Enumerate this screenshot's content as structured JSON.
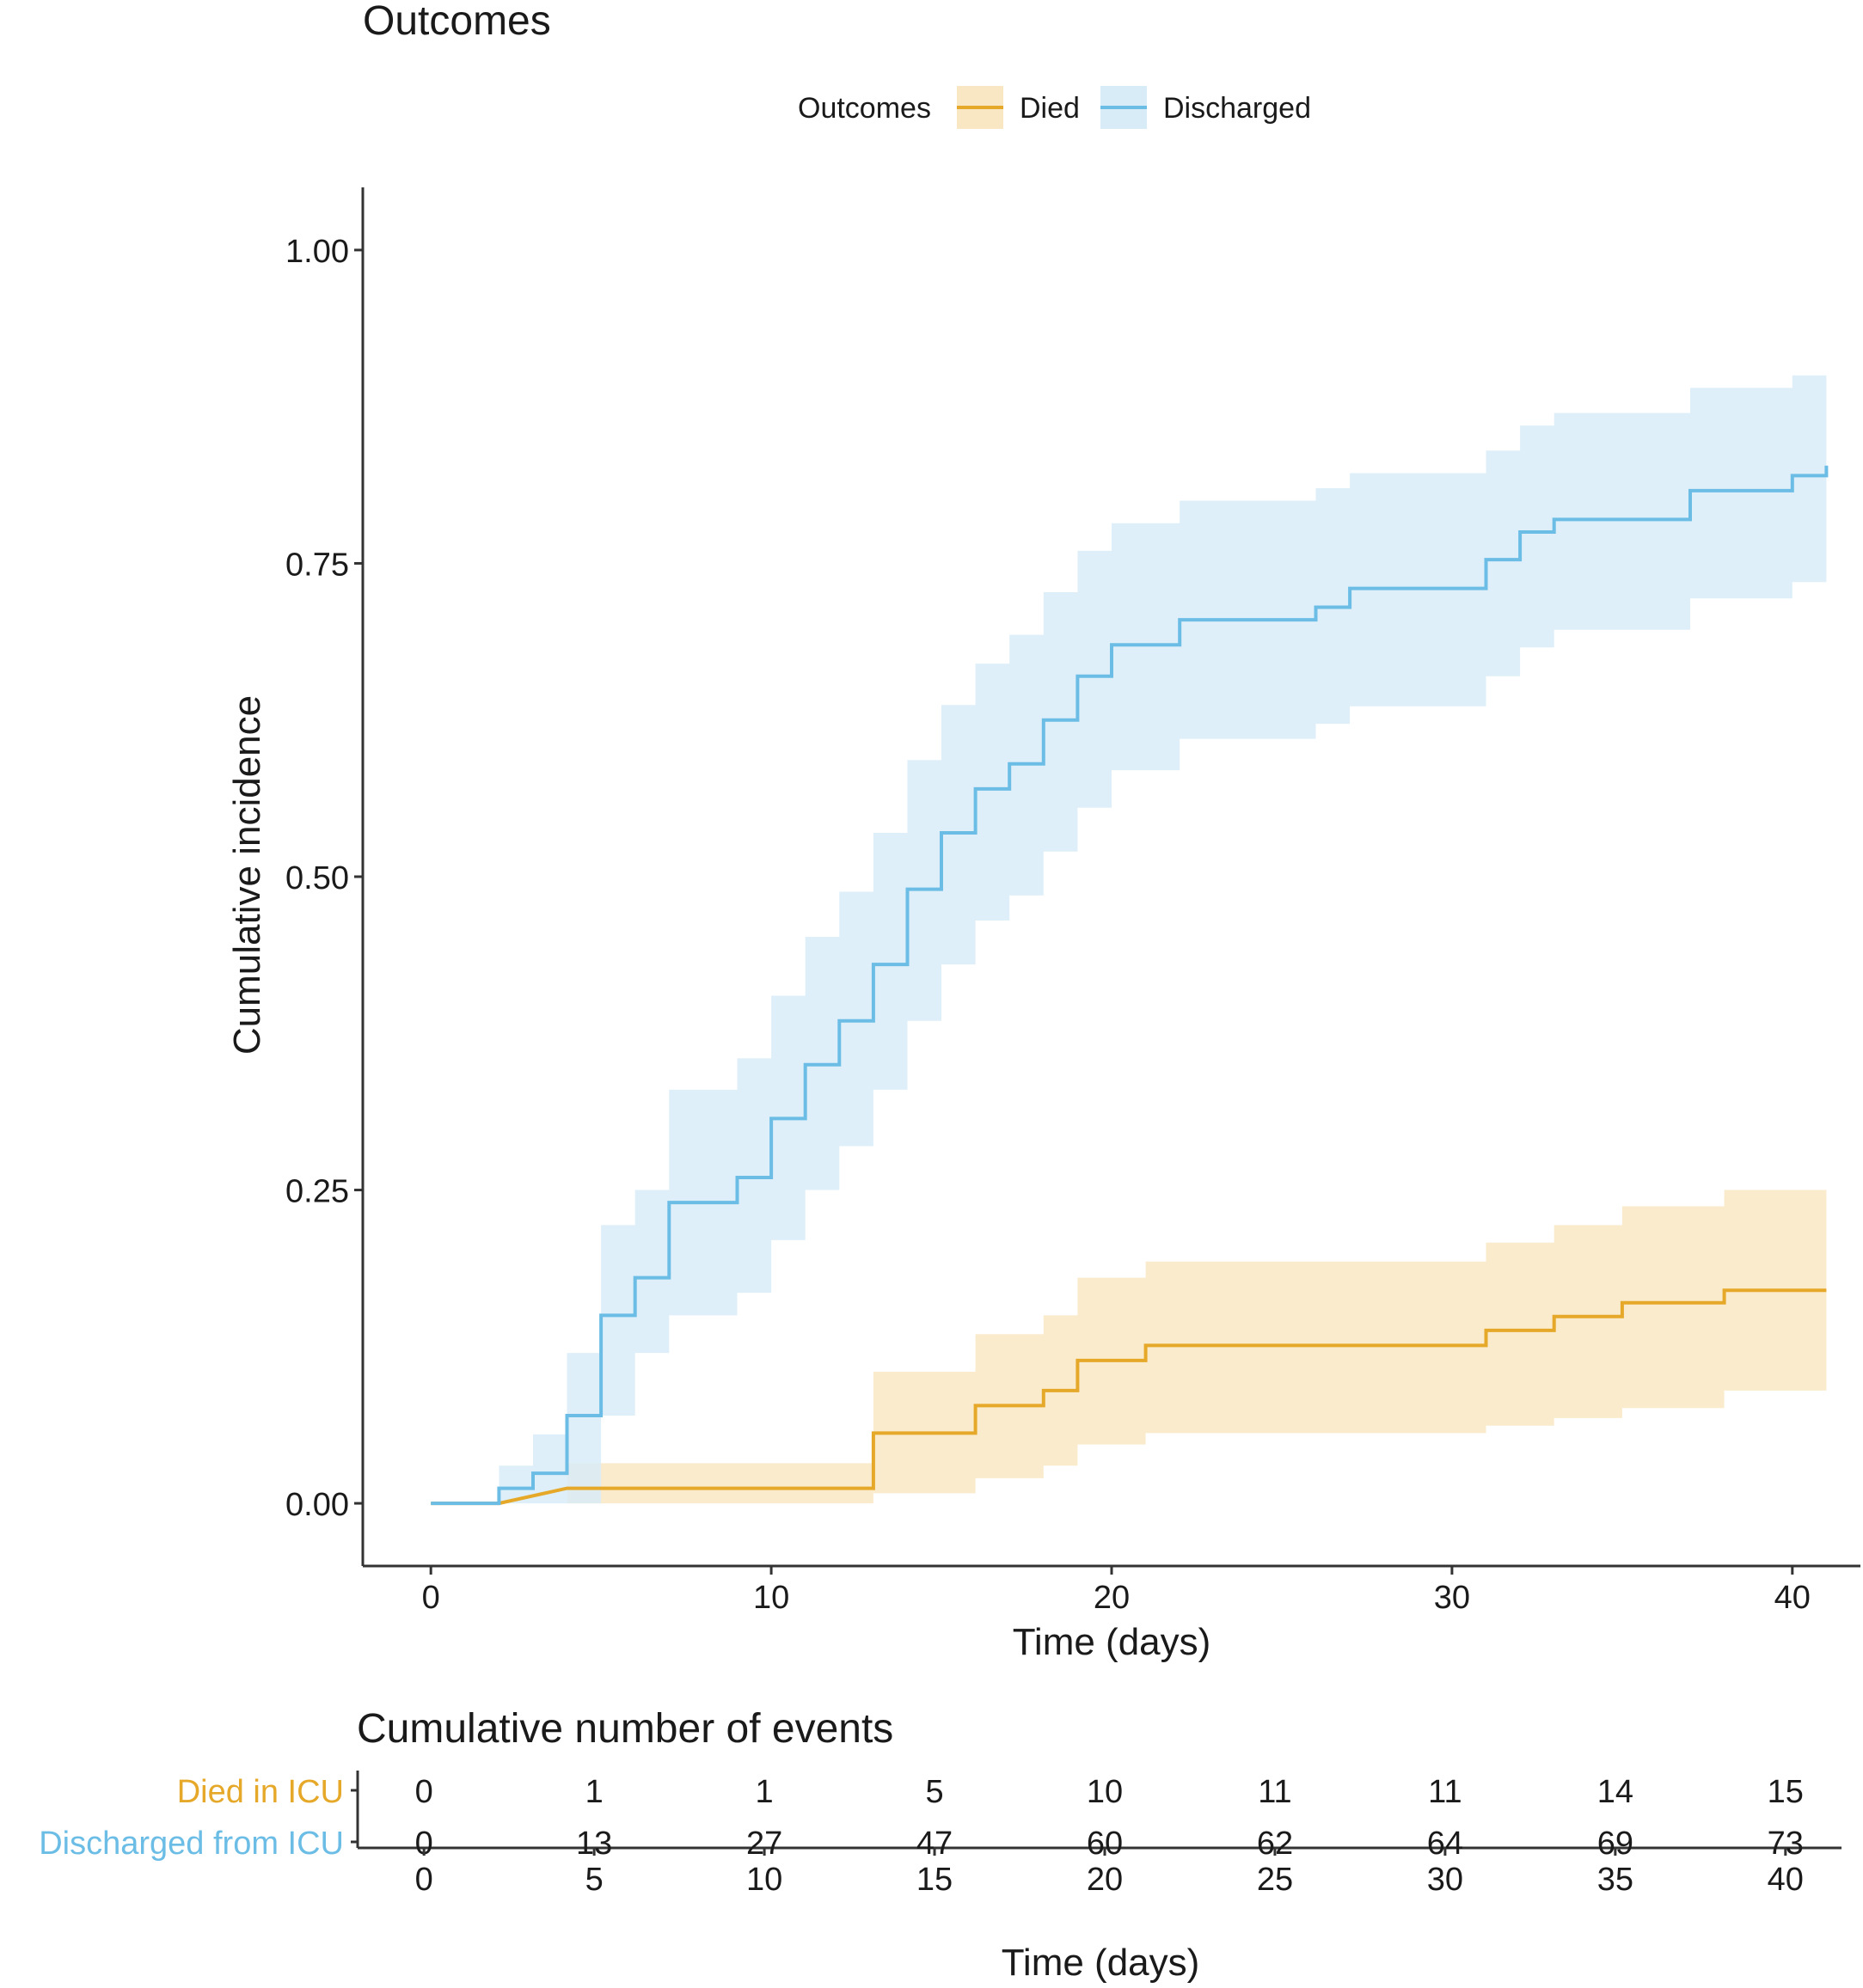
{
  "chart_data": [
    {
      "type": "line",
      "step": true,
      "title": "Outcomes",
      "xlabel": "Time (days)",
      "ylabel": "Cumulative incidence",
      "xlim": [
        -2,
        42
      ],
      "ylim": [
        -0.05,
        1.05
      ],
      "x_ticks": [
        0,
        10,
        20,
        30,
        40
      ],
      "y_ticks": [
        0,
        0.25,
        0.5,
        0.75,
        1.0
      ],
      "y_tick_labels": [
        "0.00",
        "0.25",
        "0.50",
        "0.75",
        "1.00"
      ],
      "grid": false,
      "legend": {
        "title": "Outcomes",
        "position": "top",
        "entries": [
          "Died",
          "Discharged"
        ]
      },
      "series": [
        {
          "name": "Died",
          "color": "#e6a829",
          "fill": "#f9e7c4",
          "points": [
            [
              0,
              0
            ],
            [
              2,
              0
            ],
            [
              4,
              0.012
            ],
            [
              13,
              0.012
            ],
            [
              13,
              0.056
            ],
            [
              16,
              0.056
            ],
            [
              16,
              0.078
            ],
            [
              18,
              0.078
            ],
            [
              18,
              0.09
            ],
            [
              19,
              0.09
            ],
            [
              19,
              0.114
            ],
            [
              21,
              0.114
            ],
            [
              21,
              0.126
            ],
            [
              31,
              0.126
            ],
            [
              31,
              0.138
            ],
            [
              33,
              0.138
            ],
            [
              33,
              0.149
            ],
            [
              35,
              0.149
            ],
            [
              35,
              0.16
            ],
            [
              38,
              0.16
            ],
            [
              38,
              0.17
            ],
            [
              41,
              0.17
            ]
          ],
          "lower": [
            [
              0,
              0
            ],
            [
              4,
              0
            ],
            [
              13,
              0
            ],
            [
              13,
              0.008
            ],
            [
              16,
              0.008
            ],
            [
              16,
              0.02
            ],
            [
              18,
              0.02
            ],
            [
              18,
              0.03
            ],
            [
              19,
              0.03
            ],
            [
              19,
              0.047
            ],
            [
              21,
              0.047
            ],
            [
              21,
              0.056
            ],
            [
              31,
              0.056
            ],
            [
              31,
              0.062
            ],
            [
              33,
              0.062
            ],
            [
              33,
              0.068
            ],
            [
              35,
              0.068
            ],
            [
              35,
              0.076
            ],
            [
              38,
              0.076
            ],
            [
              38,
              0.09
            ],
            [
              41,
              0.09
            ]
          ],
          "upper": [
            [
              0,
              0
            ],
            [
              4,
              0
            ],
            [
              4,
              0.032
            ],
            [
              13,
              0.032
            ],
            [
              13,
              0.105
            ],
            [
              16,
              0.105
            ],
            [
              16,
              0.135
            ],
            [
              18,
              0.135
            ],
            [
              18,
              0.15
            ],
            [
              19,
              0.15
            ],
            [
              19,
              0.18
            ],
            [
              21,
              0.18
            ],
            [
              21,
              0.193
            ],
            [
              31,
              0.193
            ],
            [
              31,
              0.208
            ],
            [
              33,
              0.208
            ],
            [
              33,
              0.222
            ],
            [
              35,
              0.222
            ],
            [
              35,
              0.237
            ],
            [
              38,
              0.237
            ],
            [
              38,
              0.25
            ],
            [
              41,
              0.25
            ]
          ]
        },
        {
          "name": "Discharged",
          "color": "#6bbde6",
          "fill": "#d8ecf8",
          "points": [
            [
              0,
              0
            ],
            [
              2,
              0
            ],
            [
              2,
              0.012
            ],
            [
              3,
              0.012
            ],
            [
              3,
              0.024
            ],
            [
              4,
              0.024
            ],
            [
              4,
              0.07
            ],
            [
              5,
              0.07
            ],
            [
              5,
              0.15
            ],
            [
              6,
              0.15
            ],
            [
              6,
              0.18
            ],
            [
              7,
              0.18
            ],
            [
              7,
              0.24
            ],
            [
              9,
              0.24
            ],
            [
              9,
              0.26
            ],
            [
              10,
              0.26
            ],
            [
              10,
              0.307
            ],
            [
              11,
              0.307
            ],
            [
              11,
              0.35
            ],
            [
              12,
              0.35
            ],
            [
              12,
              0.385
            ],
            [
              13,
              0.385
            ],
            [
              13,
              0.43
            ],
            [
              14,
              0.43
            ],
            [
              14,
              0.49
            ],
            [
              15,
              0.49
            ],
            [
              15,
              0.535
            ],
            [
              16,
              0.535
            ],
            [
              16,
              0.57
            ],
            [
              17,
              0.57
            ],
            [
              17,
              0.59
            ],
            [
              18,
              0.59
            ],
            [
              18,
              0.625
            ],
            [
              19,
              0.625
            ],
            [
              19,
              0.66
            ],
            [
              20,
              0.66
            ],
            [
              20,
              0.685
            ],
            [
              22,
              0.685
            ],
            [
              22,
              0.705
            ],
            [
              26,
              0.705
            ],
            [
              26,
              0.715
            ],
            [
              27,
              0.715
            ],
            [
              27,
              0.73
            ],
            [
              31,
              0.73
            ],
            [
              31,
              0.753
            ],
            [
              32,
              0.753
            ],
            [
              32,
              0.775
            ],
            [
              33,
              0.775
            ],
            [
              33,
              0.785
            ],
            [
              37,
              0.785
            ],
            [
              37,
              0.808
            ],
            [
              40,
              0.808
            ],
            [
              40,
              0.82
            ],
            [
              41,
              0.82
            ],
            [
              41,
              0.828
            ]
          ],
          "lower": [
            [
              0,
              0
            ],
            [
              5,
              0
            ],
            [
              5,
              0.07
            ],
            [
              6,
              0.07
            ],
            [
              6,
              0.12
            ],
            [
              7,
              0.12
            ],
            [
              7,
              0.15
            ],
            [
              9,
              0.15
            ],
            [
              9,
              0.168
            ],
            [
              10,
              0.168
            ],
            [
              10,
              0.21
            ],
            [
              11,
              0.21
            ],
            [
              11,
              0.25
            ],
            [
              12,
              0.25
            ],
            [
              12,
              0.285
            ],
            [
              13,
              0.285
            ],
            [
              13,
              0.33
            ],
            [
              14,
              0.33
            ],
            [
              14,
              0.385
            ],
            [
              15,
              0.385
            ],
            [
              15,
              0.43
            ],
            [
              16,
              0.43
            ],
            [
              16,
              0.465
            ],
            [
              17,
              0.465
            ],
            [
              17,
              0.485
            ],
            [
              18,
              0.485
            ],
            [
              18,
              0.52
            ],
            [
              19,
              0.52
            ],
            [
              19,
              0.555
            ],
            [
              20,
              0.555
            ],
            [
              20,
              0.585
            ],
            [
              22,
              0.585
            ],
            [
              22,
              0.61
            ],
            [
              26,
              0.61
            ],
            [
              26,
              0.622
            ],
            [
              27,
              0.622
            ],
            [
              27,
              0.636
            ],
            [
              31,
              0.636
            ],
            [
              31,
              0.66
            ],
            [
              32,
              0.66
            ],
            [
              32,
              0.683
            ],
            [
              33,
              0.683
            ],
            [
              33,
              0.697
            ],
            [
              37,
              0.697
            ],
            [
              37,
              0.722
            ],
            [
              40,
              0.722
            ],
            [
              40,
              0.735
            ],
            [
              41,
              0.735
            ]
          ],
          "upper": [
            [
              0,
              0
            ],
            [
              2,
              0
            ],
            [
              2,
              0.03
            ],
            [
              3,
              0.03
            ],
            [
              3,
              0.055
            ],
            [
              4,
              0.055
            ],
            [
              4,
              0.12
            ],
            [
              5,
              0.12
            ],
            [
              5,
              0.222
            ],
            [
              6,
              0.222
            ],
            [
              6,
              0.25
            ],
            [
              7,
              0.25
            ],
            [
              7,
              0.33
            ],
            [
              9,
              0.33
            ],
            [
              9,
              0.355
            ],
            [
              10,
              0.355
            ],
            [
              10,
              0.405
            ],
            [
              11,
              0.405
            ],
            [
              11,
              0.452
            ],
            [
              12,
              0.452
            ],
            [
              12,
              0.488
            ],
            [
              13,
              0.488
            ],
            [
              13,
              0.535
            ],
            [
              14,
              0.535
            ],
            [
              14,
              0.593
            ],
            [
              15,
              0.593
            ],
            [
              15,
              0.637
            ],
            [
              16,
              0.637
            ],
            [
              16,
              0.67
            ],
            [
              17,
              0.67
            ],
            [
              17,
              0.693
            ],
            [
              18,
              0.693
            ],
            [
              18,
              0.727
            ],
            [
              19,
              0.727
            ],
            [
              19,
              0.76
            ],
            [
              20,
              0.76
            ],
            [
              20,
              0.782
            ],
            [
              22,
              0.782
            ],
            [
              22,
              0.8
            ],
            [
              26,
              0.8
            ],
            [
              26,
              0.81
            ],
            [
              27,
              0.81
            ],
            [
              27,
              0.822
            ],
            [
              31,
              0.822
            ],
            [
              31,
              0.84
            ],
            [
              32,
              0.84
            ],
            [
              32,
              0.86
            ],
            [
              33,
              0.86
            ],
            [
              33,
              0.87
            ],
            [
              37,
              0.87
            ],
            [
              37,
              0.89
            ],
            [
              40,
              0.89
            ],
            [
              40,
              0.9
            ],
            [
              41,
              0.9
            ]
          ]
        }
      ]
    },
    {
      "type": "table",
      "title": "Cumulative number of events",
      "xlabel": "Time (days)",
      "x_ticks": [
        0,
        5,
        10,
        15,
        20,
        25,
        30,
        35,
        40
      ],
      "rows": [
        {
          "label": "Died in ICU",
          "color": "#e6a829",
          "values": [
            0,
            1,
            1,
            5,
            10,
            11,
            11,
            14,
            15
          ]
        },
        {
          "label": "Discharged from ICU",
          "color": "#6bbde6",
          "values": [
            0,
            13,
            27,
            47,
            60,
            62,
            64,
            69,
            73
          ]
        }
      ]
    }
  ]
}
